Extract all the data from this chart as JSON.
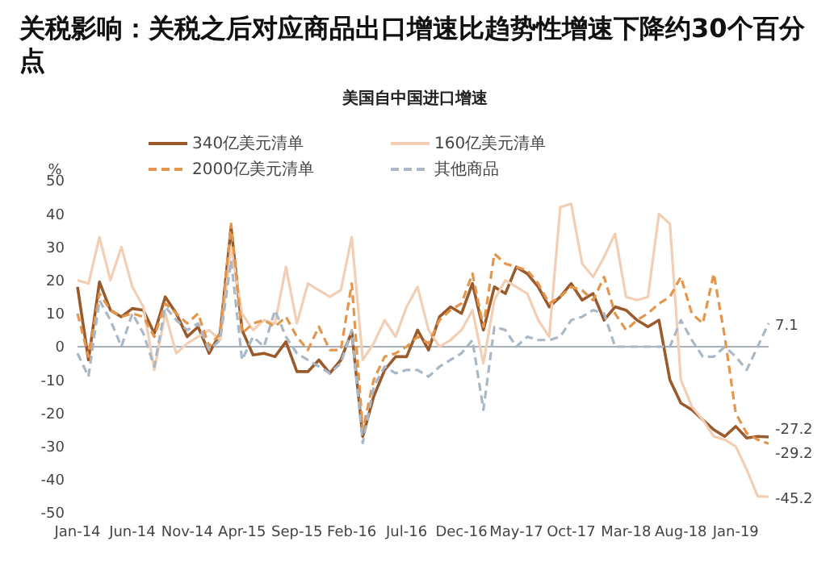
{
  "chart_data": {
    "type": "line",
    "title": "关税影响：关税之后对应商品出口增速比趋势性增速下降约30个百分点",
    "subtitle": "美国自中国进口增速",
    "ylabel": "%",
    "categories": [
      "Jan-14",
      null,
      null,
      null,
      null,
      "Jun-14",
      null,
      null,
      null,
      null,
      "Nov-14",
      null,
      null,
      null,
      null,
      "Apr-15",
      null,
      null,
      null,
      null,
      "Sep-15",
      null,
      null,
      null,
      null,
      "Feb-16",
      null,
      null,
      null,
      null,
      "Jul-16",
      null,
      null,
      null,
      null,
      "Dec-16",
      null,
      null,
      null,
      null,
      "May-17",
      null,
      null,
      null,
      null,
      "Oct-17",
      null,
      null,
      null,
      null,
      "Mar-18",
      null,
      null,
      null,
      null,
      "Aug-18",
      null,
      null,
      null,
      null,
      "Jan-19",
      null,
      null,
      null
    ],
    "ylim": [
      -50,
      50
    ],
    "yticks": [
      -50,
      -40,
      -30,
      -20,
      -10,
      0,
      10,
      20,
      30,
      40,
      50
    ],
    "grid": false,
    "legend": "top",
    "marker": "none",
    "ref_lines": [
      {
        "axis": "y",
        "value": 0,
        "color": "#a6b0bd"
      }
    ],
    "series": [
      {
        "name": "340亿美元清单",
        "color": "#9a5a2c",
        "line_style": "solid",
        "values": [
          18,
          -4,
          19.5,
          11,
          9,
          11.5,
          11,
          4,
          15,
          10,
          3,
          6,
          -2,
          4,
          36,
          5,
          -2.5,
          -2,
          -3,
          1.5,
          -7.5,
          -7.5,
          -4,
          -8,
          -4,
          4.5,
          -27,
          -15,
          -7,
          -3,
          -3,
          5,
          -1,
          9,
          12,
          10,
          19,
          5,
          18,
          16,
          24,
          22,
          18,
          12,
          15,
          19,
          14,
          16,
          8,
          12,
          11,
          8,
          6,
          8,
          -10,
          -17,
          -19,
          -22,
          -25,
          -27,
          -24,
          -27.5,
          -27,
          -27.2
        ],
        "value_labels": [
          null,
          null,
          null,
          null,
          null,
          null,
          null,
          null,
          null,
          null,
          null,
          null,
          null,
          null,
          null,
          null,
          null,
          null,
          null,
          null,
          null,
          null,
          null,
          null,
          null,
          null,
          null,
          null,
          null,
          null,
          null,
          null,
          null,
          null,
          null,
          null,
          null,
          null,
          null,
          null,
          null,
          null,
          null,
          null,
          null,
          null,
          null,
          null,
          null,
          null,
          null,
          null,
          null,
          null,
          null,
          null,
          null,
          null,
          null,
          null,
          null,
          null,
          null,
          "-27.2"
        ]
      },
      {
        "name": "160亿美元清单",
        "color": "#f2cfb4",
        "line_style": "solid",
        "values": [
          20,
          19,
          33,
          20,
          30,
          18,
          12,
          -7,
          10,
          -2,
          1,
          3,
          5,
          2,
          30,
          10,
          5,
          8,
          7,
          24,
          7,
          19,
          17,
          15,
          17,
          33,
          -4,
          1,
          8,
          3,
          12,
          18,
          5,
          0,
          2,
          5,
          11,
          -5,
          14,
          20,
          18,
          16,
          8,
          3,
          42,
          43,
          25,
          21,
          27,
          34,
          15,
          14,
          15,
          40,
          37,
          -10,
          -18,
          -22,
          -27,
          -28,
          -30,
          -37,
          -45,
          -45.2
        ],
        "value_labels": [
          null,
          null,
          null,
          null,
          null,
          null,
          null,
          null,
          null,
          null,
          null,
          null,
          null,
          null,
          null,
          null,
          null,
          null,
          null,
          null,
          null,
          null,
          null,
          null,
          null,
          null,
          null,
          null,
          null,
          null,
          null,
          null,
          null,
          null,
          null,
          null,
          null,
          null,
          null,
          null,
          null,
          null,
          null,
          null,
          null,
          null,
          null,
          null,
          null,
          null,
          null,
          null,
          null,
          null,
          null,
          null,
          null,
          null,
          null,
          null,
          null,
          null,
          null,
          "-45.2"
        ]
      },
      {
        "name": "2000亿美元清单",
        "color": "#e3964c",
        "line_style": "dashed",
        "values": [
          10,
          -3,
          16,
          11,
          9,
          10,
          9,
          3,
          13,
          10,
          7,
          10,
          0,
          4,
          37,
          4,
          7,
          8,
          6,
          9,
          3,
          -1,
          6,
          -1,
          -1,
          19,
          -25,
          -10,
          -3,
          -2,
          0,
          3,
          1,
          8,
          11,
          13,
          22,
          6,
          28,
          25,
          24,
          23,
          19,
          13,
          15,
          18,
          17,
          14,
          21,
          10,
          5,
          8,
          10,
          13,
          15,
          21,
          10,
          7,
          22,
          3,
          -20,
          -26,
          -28,
          -29.2
        ],
        "value_labels": [
          null,
          null,
          null,
          null,
          null,
          null,
          null,
          null,
          null,
          null,
          null,
          null,
          null,
          null,
          null,
          null,
          null,
          null,
          null,
          null,
          null,
          null,
          null,
          null,
          null,
          null,
          null,
          null,
          null,
          null,
          null,
          null,
          null,
          null,
          null,
          null,
          null,
          null,
          null,
          null,
          null,
          null,
          null,
          null,
          null,
          null,
          null,
          null,
          null,
          null,
          null,
          null,
          null,
          null,
          null,
          null,
          null,
          null,
          null,
          null,
          null,
          null,
          null,
          "-29.2"
        ]
      },
      {
        "name": "其他商品",
        "color": "#aab8c6",
        "line_style": "dashed",
        "values": [
          -2,
          -9,
          14,
          8,
          0,
          10,
          4,
          -6,
          12,
          8,
          5,
          7,
          -1,
          2,
          26,
          -4,
          3,
          0,
          11,
          3,
          -2,
          -4,
          -6,
          -8,
          -5,
          5,
          -29,
          -12,
          -6,
          -8,
          -7,
          -7,
          -9,
          -6,
          -4,
          -2,
          2,
          -19,
          6,
          5,
          0,
          3,
          2,
          2,
          3,
          8,
          9,
          11,
          10,
          0,
          0,
          0,
          0,
          0,
          0,
          8,
          2,
          -3,
          -3,
          0,
          -3,
          -7,
          0,
          7.1
        ],
        "value_labels": [
          null,
          null,
          null,
          null,
          null,
          null,
          null,
          null,
          null,
          null,
          null,
          null,
          null,
          null,
          null,
          null,
          null,
          null,
          null,
          null,
          null,
          null,
          null,
          null,
          null,
          null,
          null,
          null,
          null,
          null,
          null,
          null,
          null,
          null,
          null,
          null,
          null,
          null,
          null,
          null,
          null,
          null,
          null,
          null,
          null,
          null,
          null,
          null,
          null,
          null,
          null,
          null,
          null,
          null,
          null,
          null,
          null,
          null,
          null,
          null,
          null,
          null,
          null,
          "7.1"
        ]
      }
    ]
  }
}
